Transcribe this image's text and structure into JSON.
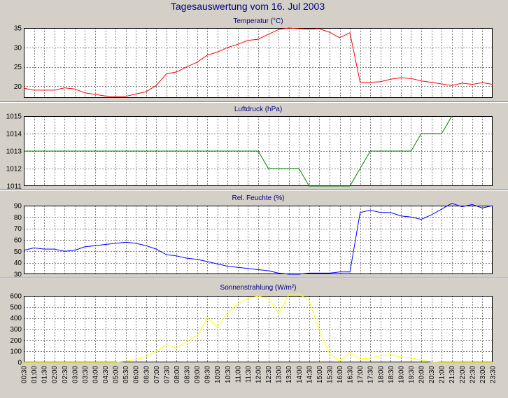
{
  "main_title": "Tagesauswertung vom 16. Jul 2003",
  "colors": {
    "background": "#d4d0c8",
    "plot_background": "#ffffff",
    "title_text": "#000080",
    "grid": "#808080",
    "temperature": "#ff0000",
    "pressure": "#008000",
    "humidity": "#0000ff",
    "radiation": "#ffff00"
  },
  "time_labels": [
    "00:30",
    "01:00",
    "01:30",
    "02:00",
    "02:30",
    "03:00",
    "03:30",
    "04:00",
    "04:30",
    "05:00",
    "05:30",
    "06:00",
    "06:30",
    "07:00",
    "07:30",
    "08:00",
    "08:30",
    "09:00",
    "09:30",
    "10:00",
    "10:30",
    "11:00",
    "11:30",
    "12:00",
    "12:30",
    "13:00",
    "13:30",
    "14:00",
    "14:30",
    "15:00",
    "15:30",
    "16:00",
    "16:30",
    "17:00",
    "17:30",
    "18:00",
    "18:30",
    "19:00",
    "19:30",
    "20:00",
    "20:30",
    "21:00",
    "21:30",
    "22:00",
    "22:30",
    "23:00",
    "23:30"
  ],
  "chart_data": [
    {
      "type": "line",
      "title": "Temperatur (°C)",
      "color": "#ff0000",
      "x_range": [
        0.5,
        23.5
      ],
      "ylim": [
        17,
        35
      ],
      "yticks": [
        20,
        25,
        30,
        35
      ],
      "x_hours": [
        0.5,
        1.0,
        1.5,
        2.0,
        2.5,
        3.0,
        3.5,
        4.0,
        4.5,
        5.0,
        5.5,
        6.0,
        6.5,
        7.0,
        7.5,
        8.0,
        8.5,
        9.0,
        9.5,
        10.0,
        10.5,
        11.0,
        11.5,
        12.0,
        12.5,
        13.0,
        13.5,
        14.0,
        14.5,
        15.0,
        15.5,
        16.0,
        16.5,
        17.0,
        17.5,
        18.0,
        18.5,
        19.0,
        19.5,
        20.0,
        20.5,
        21.0,
        21.5,
        22.0,
        22.5,
        23.0,
        23.5
      ],
      "values": [
        19.5,
        19.0,
        19.0,
        19.0,
        19.6,
        19.3,
        18.3,
        17.9,
        17.5,
        17.3,
        17.4,
        18.0,
        18.6,
        20.2,
        23.2,
        23.7,
        25.0,
        26.2,
        28.0,
        28.8,
        30.0,
        30.8,
        31.8,
        32.1,
        33.4,
        34.6,
        35.0,
        34.8,
        34.7,
        34.8,
        33.9,
        32.5,
        33.8,
        21.0,
        21.0,
        21.2,
        21.8,
        22.2,
        22.0,
        21.4,
        21.0,
        20.6,
        20.2,
        20.8,
        20.5,
        20.9,
        20.5
      ]
    },
    {
      "type": "line",
      "title": "Luftdruck (hPa)",
      "color": "#008000",
      "x_range": [
        0.5,
        23.5
      ],
      "ylim": [
        1011,
        1015
      ],
      "yticks": [
        1011,
        1012,
        1013,
        1014,
        1015
      ],
      "x_hours": [
        0.5,
        12.0,
        12.5,
        14.0,
        14.5,
        16.5,
        17.5,
        19.5,
        20.0,
        21.0,
        21.5
      ],
      "values": [
        1013,
        1013,
        1012,
        1012,
        1011,
        1011,
        1013,
        1013,
        1014,
        1014,
        1015
      ]
    },
    {
      "type": "line",
      "title": "Rel. Feuchte (%)",
      "color": "#0000ff",
      "x_range": [
        0.5,
        23.5
      ],
      "ylim": [
        30,
        90
      ],
      "yticks": [
        30,
        40,
        50,
        60,
        70,
        80,
        90
      ],
      "x_hours": [
        0.5,
        1.0,
        1.5,
        2.0,
        2.5,
        3.0,
        3.5,
        4.0,
        4.5,
        5.0,
        5.5,
        6.0,
        6.5,
        7.0,
        7.5,
        8.0,
        8.5,
        9.0,
        9.5,
        10.0,
        10.5,
        11.0,
        11.5,
        12.0,
        12.5,
        13.0,
        13.5,
        14.0,
        14.5,
        15.0,
        15.5,
        16.0,
        16.5,
        17.0,
        17.5,
        18.0,
        18.5,
        19.0,
        19.5,
        20.0,
        20.5,
        21.0,
        21.5,
        22.0,
        22.5,
        23.0,
        23.5
      ],
      "values": [
        51,
        53,
        52,
        52,
        50,
        51,
        54,
        55,
        56,
        57,
        58,
        57,
        55,
        52,
        47,
        46,
        44,
        43,
        41,
        39,
        37,
        36,
        35,
        34,
        33,
        31,
        30,
        30,
        31,
        31,
        31,
        32,
        32,
        84,
        86,
        84,
        84,
        81,
        80,
        78,
        82,
        87,
        92,
        89,
        91,
        88,
        90
      ]
    },
    {
      "type": "line",
      "title": "Sonnenstrahlung (W/m²)",
      "color": "#ffff00",
      "x_range": [
        0.5,
        23.5
      ],
      "ylim": [
        0,
        600
      ],
      "yticks": [
        0,
        100,
        200,
        300,
        400,
        500,
        600
      ],
      "x_hours": [
        0.5,
        1.0,
        1.5,
        2.0,
        2.5,
        3.0,
        3.5,
        4.0,
        4.5,
        5.0,
        5.5,
        6.0,
        6.5,
        7.0,
        7.5,
        8.0,
        8.5,
        9.0,
        9.5,
        10.0,
        10.5,
        11.0,
        11.5,
        12.0,
        12.5,
        13.0,
        13.5,
        14.0,
        14.5,
        15.0,
        15.5,
        16.0,
        16.5,
        17.0,
        17.5,
        18.0,
        18.5,
        19.0,
        19.5,
        20.0,
        20.5,
        21.0,
        21.5,
        22.0,
        22.5,
        23.0,
        23.5
      ],
      "values": [
        0,
        0,
        0,
        0,
        0,
        0,
        0,
        0,
        0,
        0,
        10,
        25,
        50,
        100,
        160,
        130,
        190,
        240,
        400,
        320,
        450,
        530,
        580,
        600,
        580,
        440,
        610,
        620,
        560,
        280,
        80,
        10,
        90,
        30,
        40,
        60,
        70,
        50,
        40,
        20,
        5,
        0,
        0,
        0,
        0,
        0,
        0
      ]
    }
  ]
}
